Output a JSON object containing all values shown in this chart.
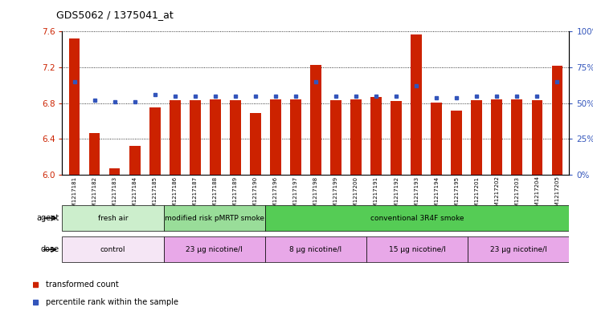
{
  "title": "GDS5062 / 1375041_at",
  "gsm_labels": [
    "GSM1217181",
    "GSM1217182",
    "GSM1217183",
    "GSM1217184",
    "GSM1217185",
    "GSM1217186",
    "GSM1217187",
    "GSM1217188",
    "GSM1217189",
    "GSM1217190",
    "GSM1217196",
    "GSM1217197",
    "GSM1217198",
    "GSM1217199",
    "GSM1217200",
    "GSM1217191",
    "GSM1217192",
    "GSM1217193",
    "GSM1217194",
    "GSM1217195",
    "GSM1217201",
    "GSM1217202",
    "GSM1217203",
    "GSM1217204",
    "GSM1217205"
  ],
  "bar_values": [
    7.52,
    6.47,
    6.07,
    6.32,
    6.75,
    6.83,
    6.83,
    6.84,
    6.83,
    6.69,
    6.84,
    6.84,
    7.23,
    6.83,
    6.84,
    6.87,
    6.82,
    7.57,
    6.81,
    6.72,
    6.83,
    6.84,
    6.84,
    6.83,
    7.22
  ],
  "percentile_values_pct": [
    65,
    52,
    51,
    51,
    56,
    55,
    55,
    55,
    55,
    55,
    55,
    55,
    65,
    55,
    55,
    55,
    55,
    62,
    54,
    54,
    55,
    55,
    55,
    55,
    65
  ],
  "ylim": [
    6.0,
    7.6
  ],
  "yticks": [
    6.0,
    6.4,
    6.8,
    7.2,
    7.6
  ],
  "y2lim": [
    0,
    100
  ],
  "y2ticks": [
    0,
    25,
    50,
    75,
    100
  ],
  "bar_color": "#cc2200",
  "dot_color": "#3355bb",
  "plot_bg": "#ffffff",
  "background_color": "#ffffff",
  "agent_groups": [
    {
      "label": "fresh air",
      "start": 0,
      "end": 5,
      "color": "#cceecc"
    },
    {
      "label": "modified risk pMRTP smoke",
      "start": 5,
      "end": 10,
      "color": "#99dd99"
    },
    {
      "label": "conventional 3R4F smoke",
      "start": 10,
      "end": 25,
      "color": "#55cc55"
    }
  ],
  "dose_groups": [
    {
      "label": "control",
      "start": 0,
      "end": 5,
      "color": "#f5e6f5"
    },
    {
      "label": "23 µg nicotine/l",
      "start": 5,
      "end": 10,
      "color": "#e8a8e8"
    },
    {
      "label": "8 µg nicotine/l",
      "start": 10,
      "end": 15,
      "color": "#e8a8e8"
    },
    {
      "label": "15 µg nicotine/l",
      "start": 15,
      "end": 20,
      "color": "#e8a8e8"
    },
    {
      "label": "23 µg nicotine/l",
      "start": 20,
      "end": 25,
      "color": "#e8a8e8"
    }
  ],
  "legend_bar_label": "transformed count",
  "legend_dot_label": "percentile rank within the sample"
}
